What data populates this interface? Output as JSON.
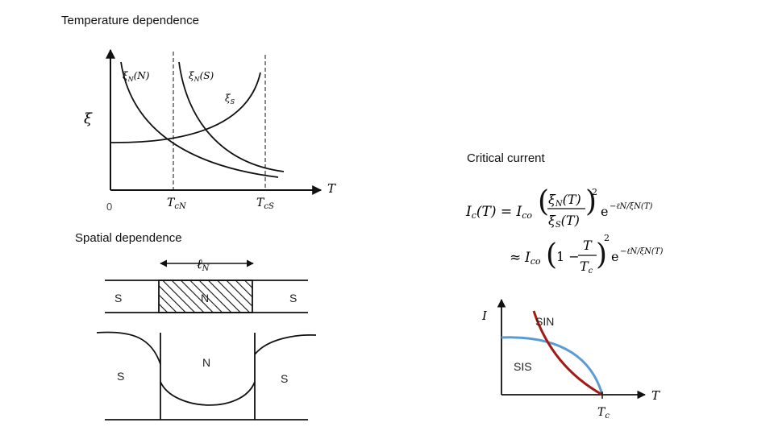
{
  "headings": {
    "temperature": "Temperature dependence",
    "spatial": "Spatial dependence",
    "critical": "Critical current"
  },
  "temp_graph": {
    "y_axis": "ξ",
    "x_axis": "T",
    "origin": "0",
    "tick_TcN": "T",
    "tick_TcN_sub": "cN",
    "tick_TcS": "T",
    "tick_TcS_sub": "cS",
    "curve_xiN_N": "ξ",
    "curve_xiN_N_sub": "N",
    "curve_xiN_N_paren": "(N)",
    "curve_xiN_S": "ξ",
    "curve_xiN_S_sub": "N",
    "curve_xiN_S_paren": "(S)",
    "curve_xiS": "ξ",
    "curve_xiS_sub": "S"
  },
  "junction": {
    "length_label": "ℓ",
    "length_sub": "N",
    "left": "S",
    "middle": "N",
    "right": "S",
    "profile_left": "S",
    "profile_middle": "N",
    "profile_right": "S"
  },
  "equations": {
    "line1_lhs": "I",
    "line1_lhs_sub": "c",
    "line1_lhs_arg": "(T) = ",
    "I_co": "I",
    "I_co_sub": "co",
    "xi_N_T": "ξ",
    "xi_N_T_sub": "N",
    "xi_N_T_arg": "(T)",
    "xi_S_T": "ξ",
    "xi_S_T_sub": "S",
    "xi_S_T_arg": "(T)",
    "exp": "e",
    "exp_power": "−ℓN/ξN(T)",
    "square": "2",
    "approx": "≈",
    "one_minus": "1 −",
    "T": "T",
    "Tc": "T",
    "Tc_sub": "c"
  },
  "ic_graph": {
    "y_axis": "I",
    "x_axis": "T",
    "tick_Tc": "T",
    "tick_Tc_sub": "c",
    "label_sin": "SIN",
    "label_sis": "SIS"
  },
  "colors": {
    "sin_curve": "#a01c14",
    "sis_curve": "#5b9bd5",
    "ink": "#111111"
  }
}
